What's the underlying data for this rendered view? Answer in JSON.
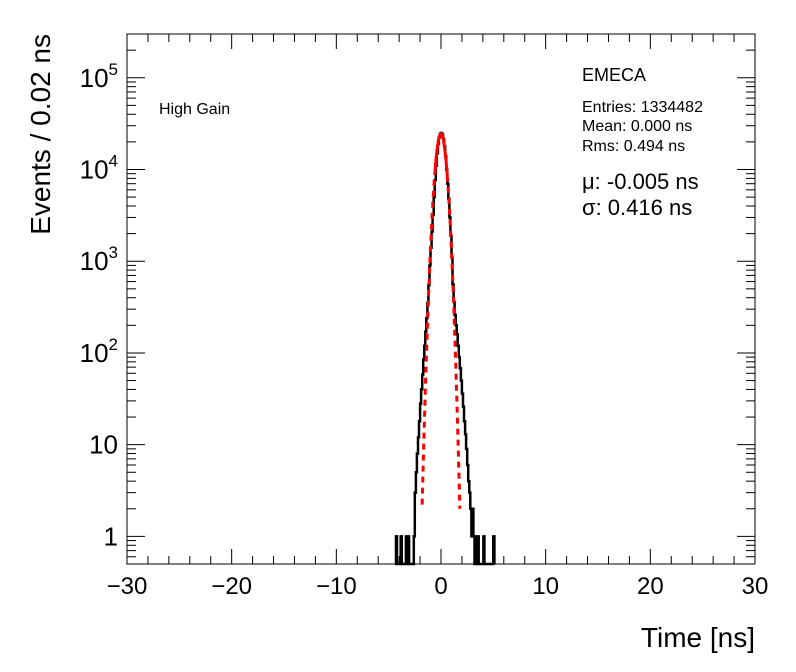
{
  "chart_data": {
    "type": "line",
    "title": "",
    "xlabel": "Time [ns]",
    "ylabel": "Events / 0.02 ns",
    "xlim": [
      -30,
      30
    ],
    "ylim": [
      0.5,
      300000
    ],
    "yscale": "log",
    "grid": false,
    "x_tick_labels": [
      "−30",
      "−20",
      "−10",
      "0",
      "10",
      "20",
      "30"
    ],
    "x_tick_values": [
      -30,
      -20,
      -10,
      0,
      10,
      20,
      30
    ],
    "y_tick_values": [
      1,
      10,
      100,
      1000,
      10000,
      100000
    ],
    "y_tick_labels": [
      {
        "base": "1",
        "exp": ""
      },
      {
        "base": "10",
        "exp": ""
      },
      {
        "base": "10",
        "exp": "2"
      },
      {
        "base": "10",
        "exp": "3"
      },
      {
        "base": "10",
        "exp": "4"
      },
      {
        "base": "10",
        "exp": "5"
      }
    ],
    "annotations": {
      "gain": "High Gain",
      "detector": "EMECA",
      "entries": "Entries: 1334482",
      "mean": "Mean: 0.000 ns",
      "rms": "Rms: 0.494 ns",
      "mu": "μ: -0.005 ns",
      "sigma": "σ: 0.416 ns"
    },
    "series": [
      {
        "color": "#000000",
        "style": "histogram",
        "points": [
          [
            -4.4,
            0.5
          ],
          [
            -4.3,
            1
          ],
          [
            -4.2,
            0.5
          ],
          [
            -3.85,
            1
          ],
          [
            -3.75,
            0.5
          ],
          [
            -3.35,
            1
          ],
          [
            -3.25,
            0.5
          ],
          [
            -3.15,
            1
          ],
          [
            -3.05,
            0.5
          ],
          [
            -2.6,
            1
          ],
          [
            -2.5,
            3
          ],
          [
            -2.4,
            5
          ],
          [
            -2.3,
            8
          ],
          [
            -2.2,
            12
          ],
          [
            -2.1,
            18
          ],
          [
            -2.0,
            28
          ],
          [
            -1.9,
            40
          ],
          [
            -1.8,
            58
          ],
          [
            -1.7,
            85
          ],
          [
            -1.6,
            120
          ],
          [
            -1.5,
            170
          ],
          [
            -1.4,
            240
          ],
          [
            -1.3,
            350
          ],
          [
            -1.2,
            550
          ],
          [
            -1.1,
            900
          ],
          [
            -1.0,
            1400
          ],
          [
            -0.9,
            2100
          ],
          [
            -0.8,
            3200
          ],
          [
            -0.7,
            5000
          ],
          [
            -0.6,
            7600
          ],
          [
            -0.5,
            11000
          ],
          [
            -0.4,
            15000
          ],
          [
            -0.3,
            19000
          ],
          [
            -0.2,
            22500
          ],
          [
            -0.1,
            24500
          ],
          [
            0.0,
            25000
          ],
          [
            0.1,
            24000
          ],
          [
            0.2,
            21500
          ],
          [
            0.3,
            18000
          ],
          [
            0.4,
            14000
          ],
          [
            0.5,
            10000
          ],
          [
            0.6,
            7000
          ],
          [
            0.7,
            4800
          ],
          [
            0.8,
            3000
          ],
          [
            0.9,
            1900
          ],
          [
            1.0,
            1100
          ],
          [
            1.1,
            560
          ],
          [
            1.2,
            360
          ],
          [
            1.3,
            260
          ],
          [
            1.4,
            200
          ],
          [
            1.5,
            160
          ],
          [
            1.6,
            120
          ],
          [
            1.7,
            90
          ],
          [
            1.8,
            68
          ],
          [
            1.9,
            50
          ],
          [
            2.0,
            36
          ],
          [
            2.1,
            26
          ],
          [
            2.2,
            18
          ],
          [
            2.3,
            13
          ],
          [
            2.4,
            9
          ],
          [
            2.5,
            6
          ],
          [
            2.6,
            4
          ],
          [
            2.7,
            3
          ],
          [
            2.8,
            2
          ],
          [
            2.9,
            1
          ],
          [
            3.0,
            2
          ],
          [
            3.1,
            1
          ],
          [
            3.2,
            0.5
          ],
          [
            3.3,
            1
          ],
          [
            3.4,
            0.5
          ],
          [
            3.5,
            1
          ],
          [
            3.6,
            0.5
          ],
          [
            4.05,
            1
          ],
          [
            4.15,
            0.5
          ],
          [
            5.0,
            1
          ],
          [
            5.1,
            0.5
          ]
        ]
      },
      {
        "name": "",
        "color": "#ff0000",
        "style": "gaussian-fit",
        "mu": -0.005,
        "sigma": 0.416,
        "amplitude": 24500,
        "solid_range": [
          -0.6,
          0.6
        ],
        "dashed_range": [
          -1.8,
          1.8
        ]
      }
    ]
  }
}
